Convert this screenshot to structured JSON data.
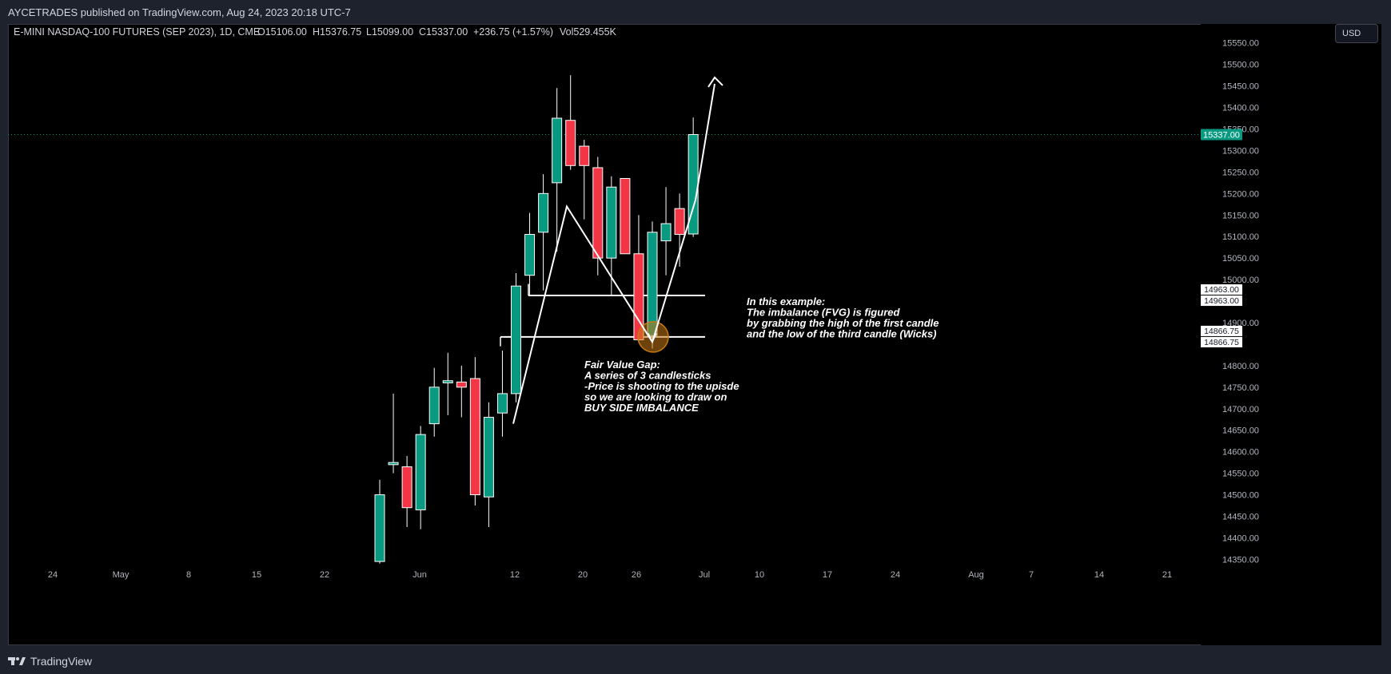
{
  "header": {
    "publish_line": "AYCETRADES published on TradingView.com, Aug 24, 2023 20:18 UTC-7"
  },
  "legend": {
    "symbol": "E-MINI NASDAQ-100 FUTURES (SEP 2023), 1D, CME",
    "open": "O15106.00",
    "high": "H15376.75",
    "low": "L15099.00",
    "close": "C15337.00",
    "change": "+236.75 (+1.57%)",
    "volume": "Vol529.455K"
  },
  "currency_button": "USD",
  "footer": {
    "brand": "TradingView"
  },
  "colors": {
    "up": "#089981",
    "down": "#f23645",
    "background": "#000000",
    "frame": "#1e222d",
    "text": "#d1d4dc",
    "price_label": "#089981",
    "annotation": "#ffffff",
    "highlight_circle": "#c87a14"
  },
  "chart_data": {
    "type": "candlestick",
    "interval": "1D",
    "y_axis_ticks": [
      15550,
      15500,
      15450,
      15400,
      15350,
      15300,
      15250,
      15200,
      15150,
      15100,
      15050,
      15000,
      14900,
      14800,
      14750,
      14700,
      14650,
      14600,
      14550,
      14500,
      14450,
      14400,
      14350
    ],
    "y_axis_tick_labels": [
      "15550.00",
      "15500.00",
      "15450.00",
      "15400.00",
      "15350.00",
      "15300.00",
      "15250.00",
      "15200.00",
      "15150.00",
      "15100.00",
      "15050.00",
      "15000.00",
      "14900.00",
      "14800.00",
      "14750.00",
      "14700.00",
      "14650.00",
      "14600.00",
      "14550.00",
      "14500.00",
      "14450.00",
      "14400.00",
      "14350.00"
    ],
    "x_axis_labels": [
      "24",
      "May",
      "8",
      "15",
      "22",
      "Jun",
      "12",
      "20",
      "26",
      "Jul",
      "10",
      "17",
      "24",
      "Aug",
      "7",
      "14",
      "21"
    ],
    "last_price": 15337.0,
    "last_price_label": "15337.00",
    "marked_levels": [
      {
        "value": 14963.0,
        "labels": [
          "14963.00",
          "14963.00"
        ]
      },
      {
        "value": 14866.75,
        "labels": [
          "14866.75",
          "14866.75"
        ]
      }
    ],
    "candles": [
      {
        "o": 14345,
        "h": 14535,
        "l": 14340,
        "c": 14500
      },
      {
        "o": 14570,
        "h": 14735,
        "l": 14550,
        "c": 14575
      },
      {
        "o": 14565,
        "h": 14590,
        "l": 14425,
        "c": 14470
      },
      {
        "o": 14465,
        "h": 14660,
        "l": 14420,
        "c": 14640
      },
      {
        "o": 14665,
        "h": 14795,
        "l": 14635,
        "c": 14750
      },
      {
        "o": 14760,
        "h": 14830,
        "l": 14685,
        "c": 14765
      },
      {
        "o": 14762,
        "h": 14800,
        "l": 14680,
        "c": 14750
      },
      {
        "o": 14770,
        "h": 14820,
        "l": 14475,
        "c": 14500
      },
      {
        "o": 14495,
        "h": 14715,
        "l": 14425,
        "c": 14680
      },
      {
        "o": 14690,
        "h": 14835,
        "l": 14635,
        "c": 14735
      },
      {
        "o": 14735,
        "h": 15015,
        "l": 14715,
        "c": 14985
      },
      {
        "o": 15010,
        "h": 15155,
        "l": 14965,
        "c": 15105
      },
      {
        "o": 15110,
        "h": 15245,
        "l": 14975,
        "c": 15200
      },
      {
        "o": 15225,
        "h": 15445,
        "l": 15065,
        "c": 15375
      },
      {
        "o": 15370,
        "h": 15475,
        "l": 15255,
        "c": 15265
      },
      {
        "o": 15310,
        "h": 15325,
        "l": 15140,
        "c": 15265
      },
      {
        "o": 15260,
        "h": 15285,
        "l": 15010,
        "c": 15050
      },
      {
        "o": 15050,
        "h": 15240,
        "l": 14965,
        "c": 15215
      },
      {
        "o": 15235,
        "h": 15235,
        "l": 15065,
        "c": 15060
      },
      {
        "o": 15060,
        "h": 15150,
        "l": 14855,
        "c": 14860
      },
      {
        "o": 14870,
        "h": 15135,
        "l": 14840,
        "c": 15110
      },
      {
        "o": 15090,
        "h": 15215,
        "l": 15010,
        "c": 15130
      },
      {
        "o": 15165,
        "h": 15200,
        "l": 15030,
        "c": 15105
      },
      {
        "o": 15106,
        "h": 15376.75,
        "l": 15099,
        "c": 15337
      }
    ],
    "annotations": [
      {
        "id": "fvg-note",
        "lines": [
          "Fair Value Gap:",
          "A series of 3 candlesticks",
          "-Price is shooting to the upisde",
          "so we are looking to draw on",
          "BUY SIDE IMBALANCE"
        ]
      },
      {
        "id": "example-note",
        "lines": [
          "In this example:",
          "The imbalance (FVG) is figured",
          "by grabbing the high of the first candle",
          "and the low of the third candle (Wicks)"
        ]
      }
    ]
  }
}
